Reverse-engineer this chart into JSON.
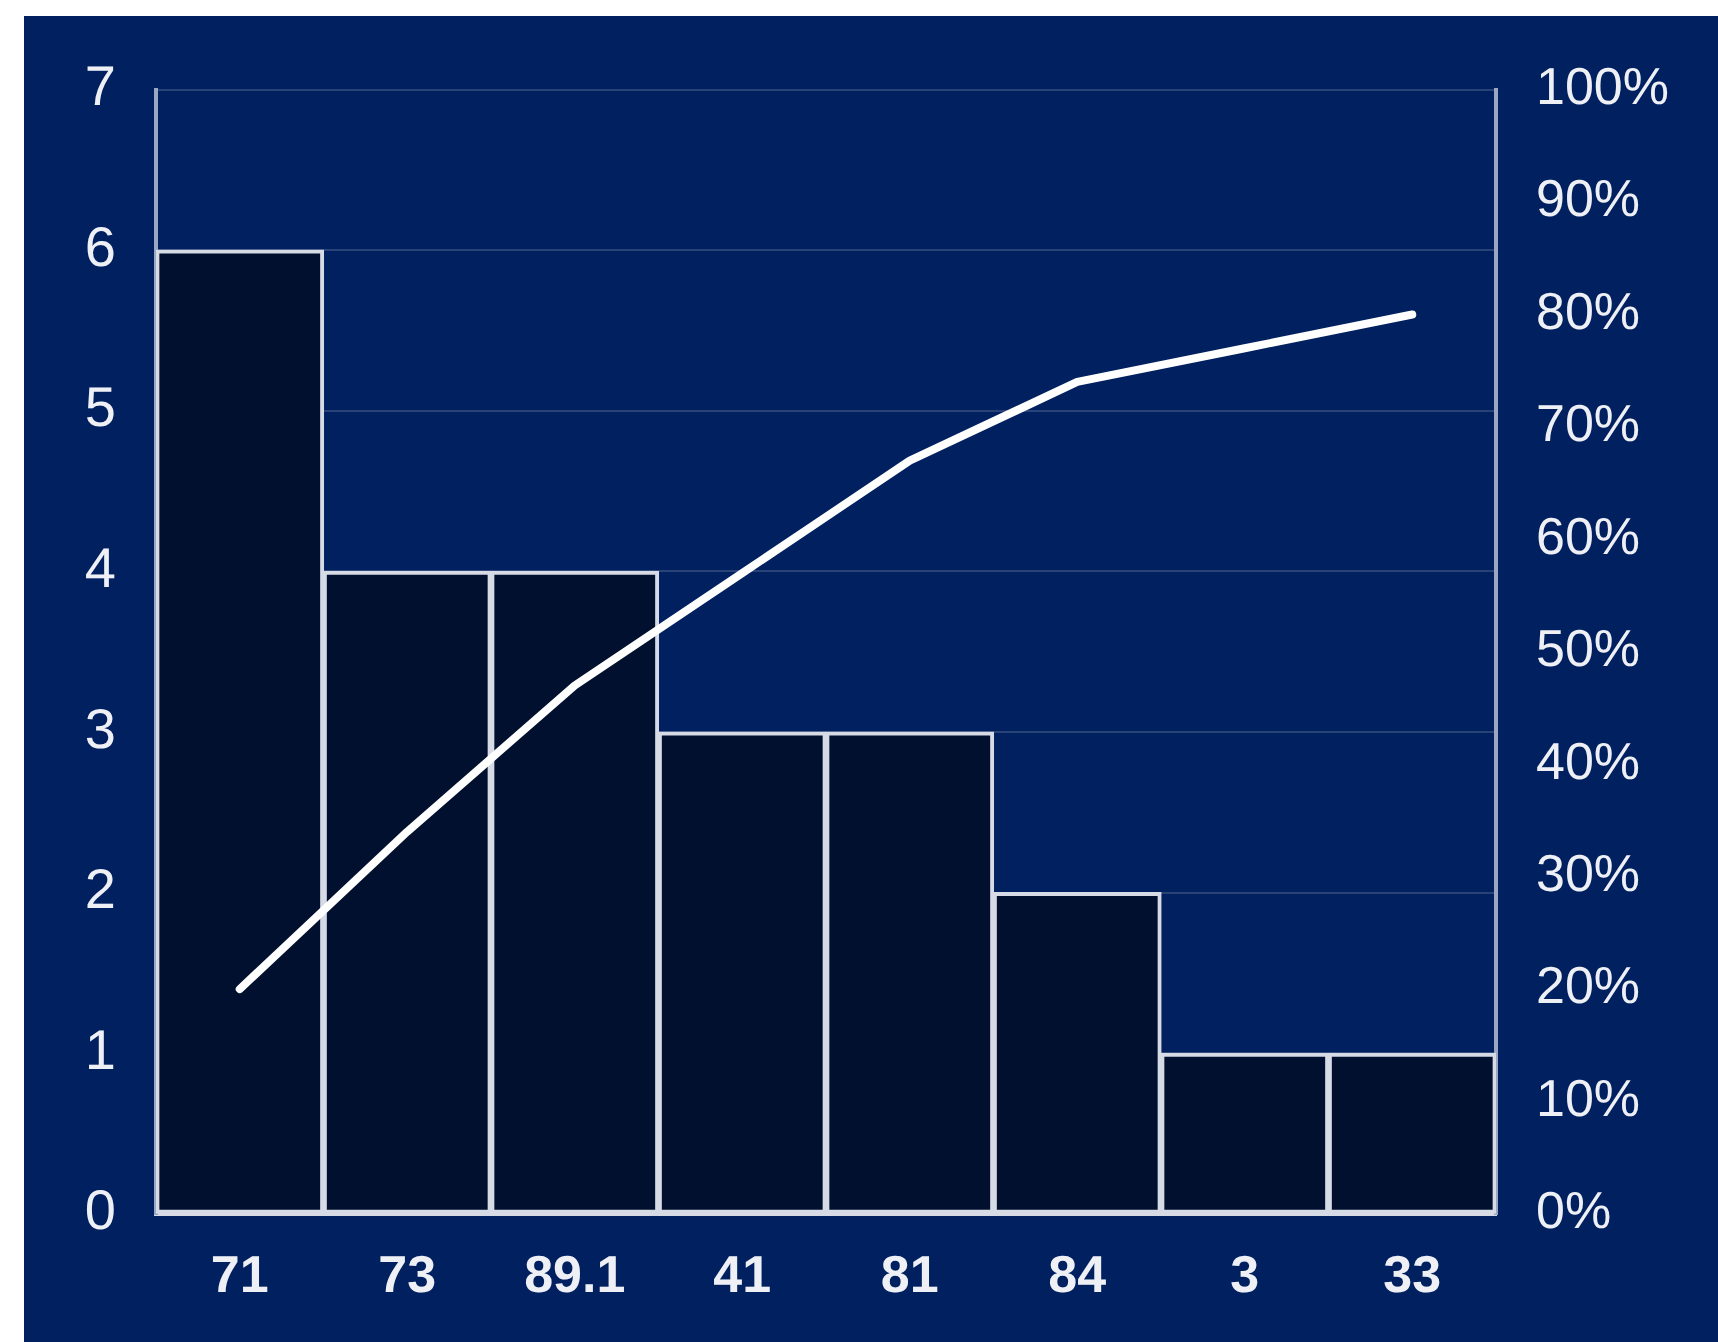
{
  "chart_data": {
    "type": "bar",
    "categories": [
      "71",
      "73",
      "89.1",
      "41",
      "81",
      "84",
      "3",
      "33"
    ],
    "series": [
      {
        "color": "#00102e",
        "values": [
          6,
          4,
          4,
          3,
          3,
          2,
          1,
          1
        ]
      },
      {
        "type": "line",
        "color": "#ffffff",
        "axis": "y2",
        "values": [
          20,
          34,
          47,
          57,
          67,
          74,
          77,
          80
        ]
      }
    ],
    "ylim": [
      0,
      7
    ],
    "yticks": [
      0,
      1,
      2,
      3,
      4,
      5,
      6,
      7
    ],
    "y2lim": [
      0,
      100
    ],
    "y2ticks": [
      {
        "value": 0,
        "label": "0%"
      },
      {
        "value": 10,
        "label": "10%"
      },
      {
        "value": 20,
        "label": "20%"
      },
      {
        "value": 30,
        "label": "30%"
      },
      {
        "value": 40,
        "label": "40%"
      },
      {
        "value": 50,
        "label": "50%"
      },
      {
        "value": 60,
        "label": "60%"
      },
      {
        "value": 70,
        "label": "70%"
      },
      {
        "value": 80,
        "label": "80%"
      },
      {
        "value": 90,
        "label": "90%"
      },
      {
        "value": 100,
        "label": "100%"
      }
    ],
    "grid": "y",
    "marker": "none"
  }
}
